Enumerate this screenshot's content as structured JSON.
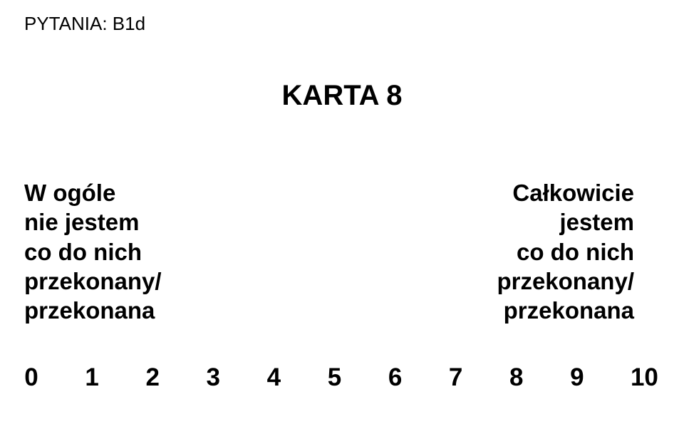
{
  "header": "PYTANIA: B1d",
  "title": "KARTA 8",
  "leftLabel": {
    "line1": "W ogóle",
    "line2": "nie jestem",
    "line3": "co do nich",
    "line4": "przekonany/",
    "line5": "przekonana"
  },
  "rightLabel": {
    "line1": "Całkowicie",
    "line2": "jestem",
    "line3": "co do nich",
    "line4": "przekonany/",
    "line5": "przekonana"
  },
  "scale": {
    "v0": "0",
    "v1": "1",
    "v2": "2",
    "v3": "3",
    "v4": "4",
    "v5": "5",
    "v6": "6",
    "v7": "7",
    "v8": "8",
    "v9": "9",
    "v10": "10"
  },
  "colors": {
    "background": "#ffffff",
    "text": "#000000"
  },
  "typography": {
    "header_fontsize": 26,
    "title_fontsize": 40,
    "label_fontsize": 33,
    "scale_fontsize": 35,
    "font_family": "Arial"
  }
}
